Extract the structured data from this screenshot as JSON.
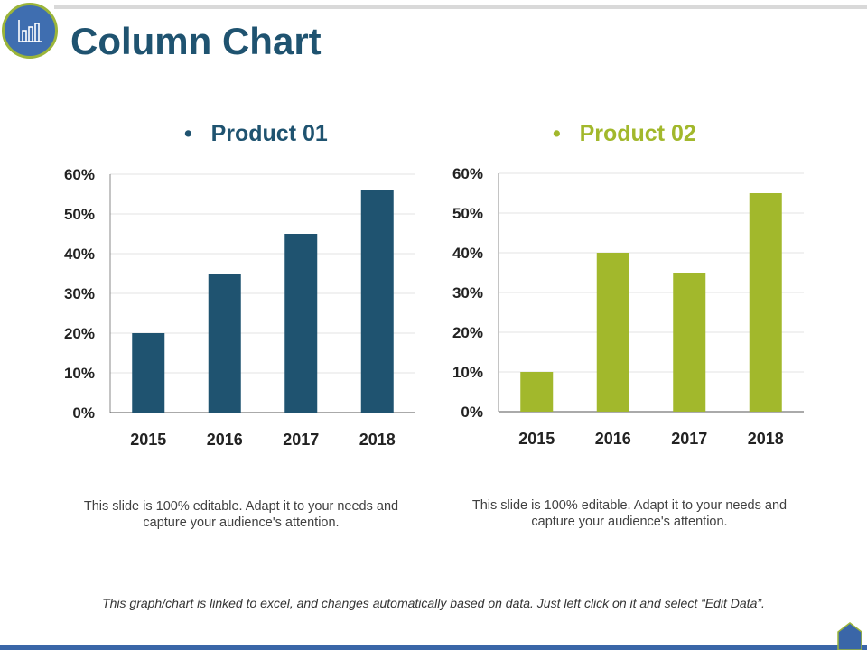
{
  "title": "Column Chart",
  "icon": "bar-chart-icon",
  "colors": {
    "product1": "#1f5370",
    "product2": "#a2b82c"
  },
  "chart_data": [
    {
      "type": "bar",
      "title": "Product 01",
      "categories": [
        "2015",
        "2016",
        "2017",
        "2018"
      ],
      "values": [
        20,
        35,
        45,
        56
      ],
      "yticks": [
        "0%",
        "10%",
        "20%",
        "30%",
        "40%",
        "50%",
        "60%"
      ],
      "ylim": [
        0,
        60
      ],
      "grid": true
    },
    {
      "type": "bar",
      "title": "Product 02",
      "categories": [
        "2015",
        "2016",
        "2017",
        "2018"
      ],
      "values": [
        10,
        40,
        35,
        55
      ],
      "yticks": [
        "0%",
        "10%",
        "20%",
        "30%",
        "40%",
        "50%",
        "60%"
      ],
      "ylim": [
        0,
        60
      ],
      "grid": true
    }
  ],
  "descriptions": [
    "This slide is 100% editable. Adapt it to your needs and capture your audience's attention.",
    "This slide is 100% editable. Adapt it to your needs and capture your audience's attention."
  ],
  "footer": "This graph/chart is linked to excel, and changes automatically based on data. Just left click on it and select “Edit Data”."
}
